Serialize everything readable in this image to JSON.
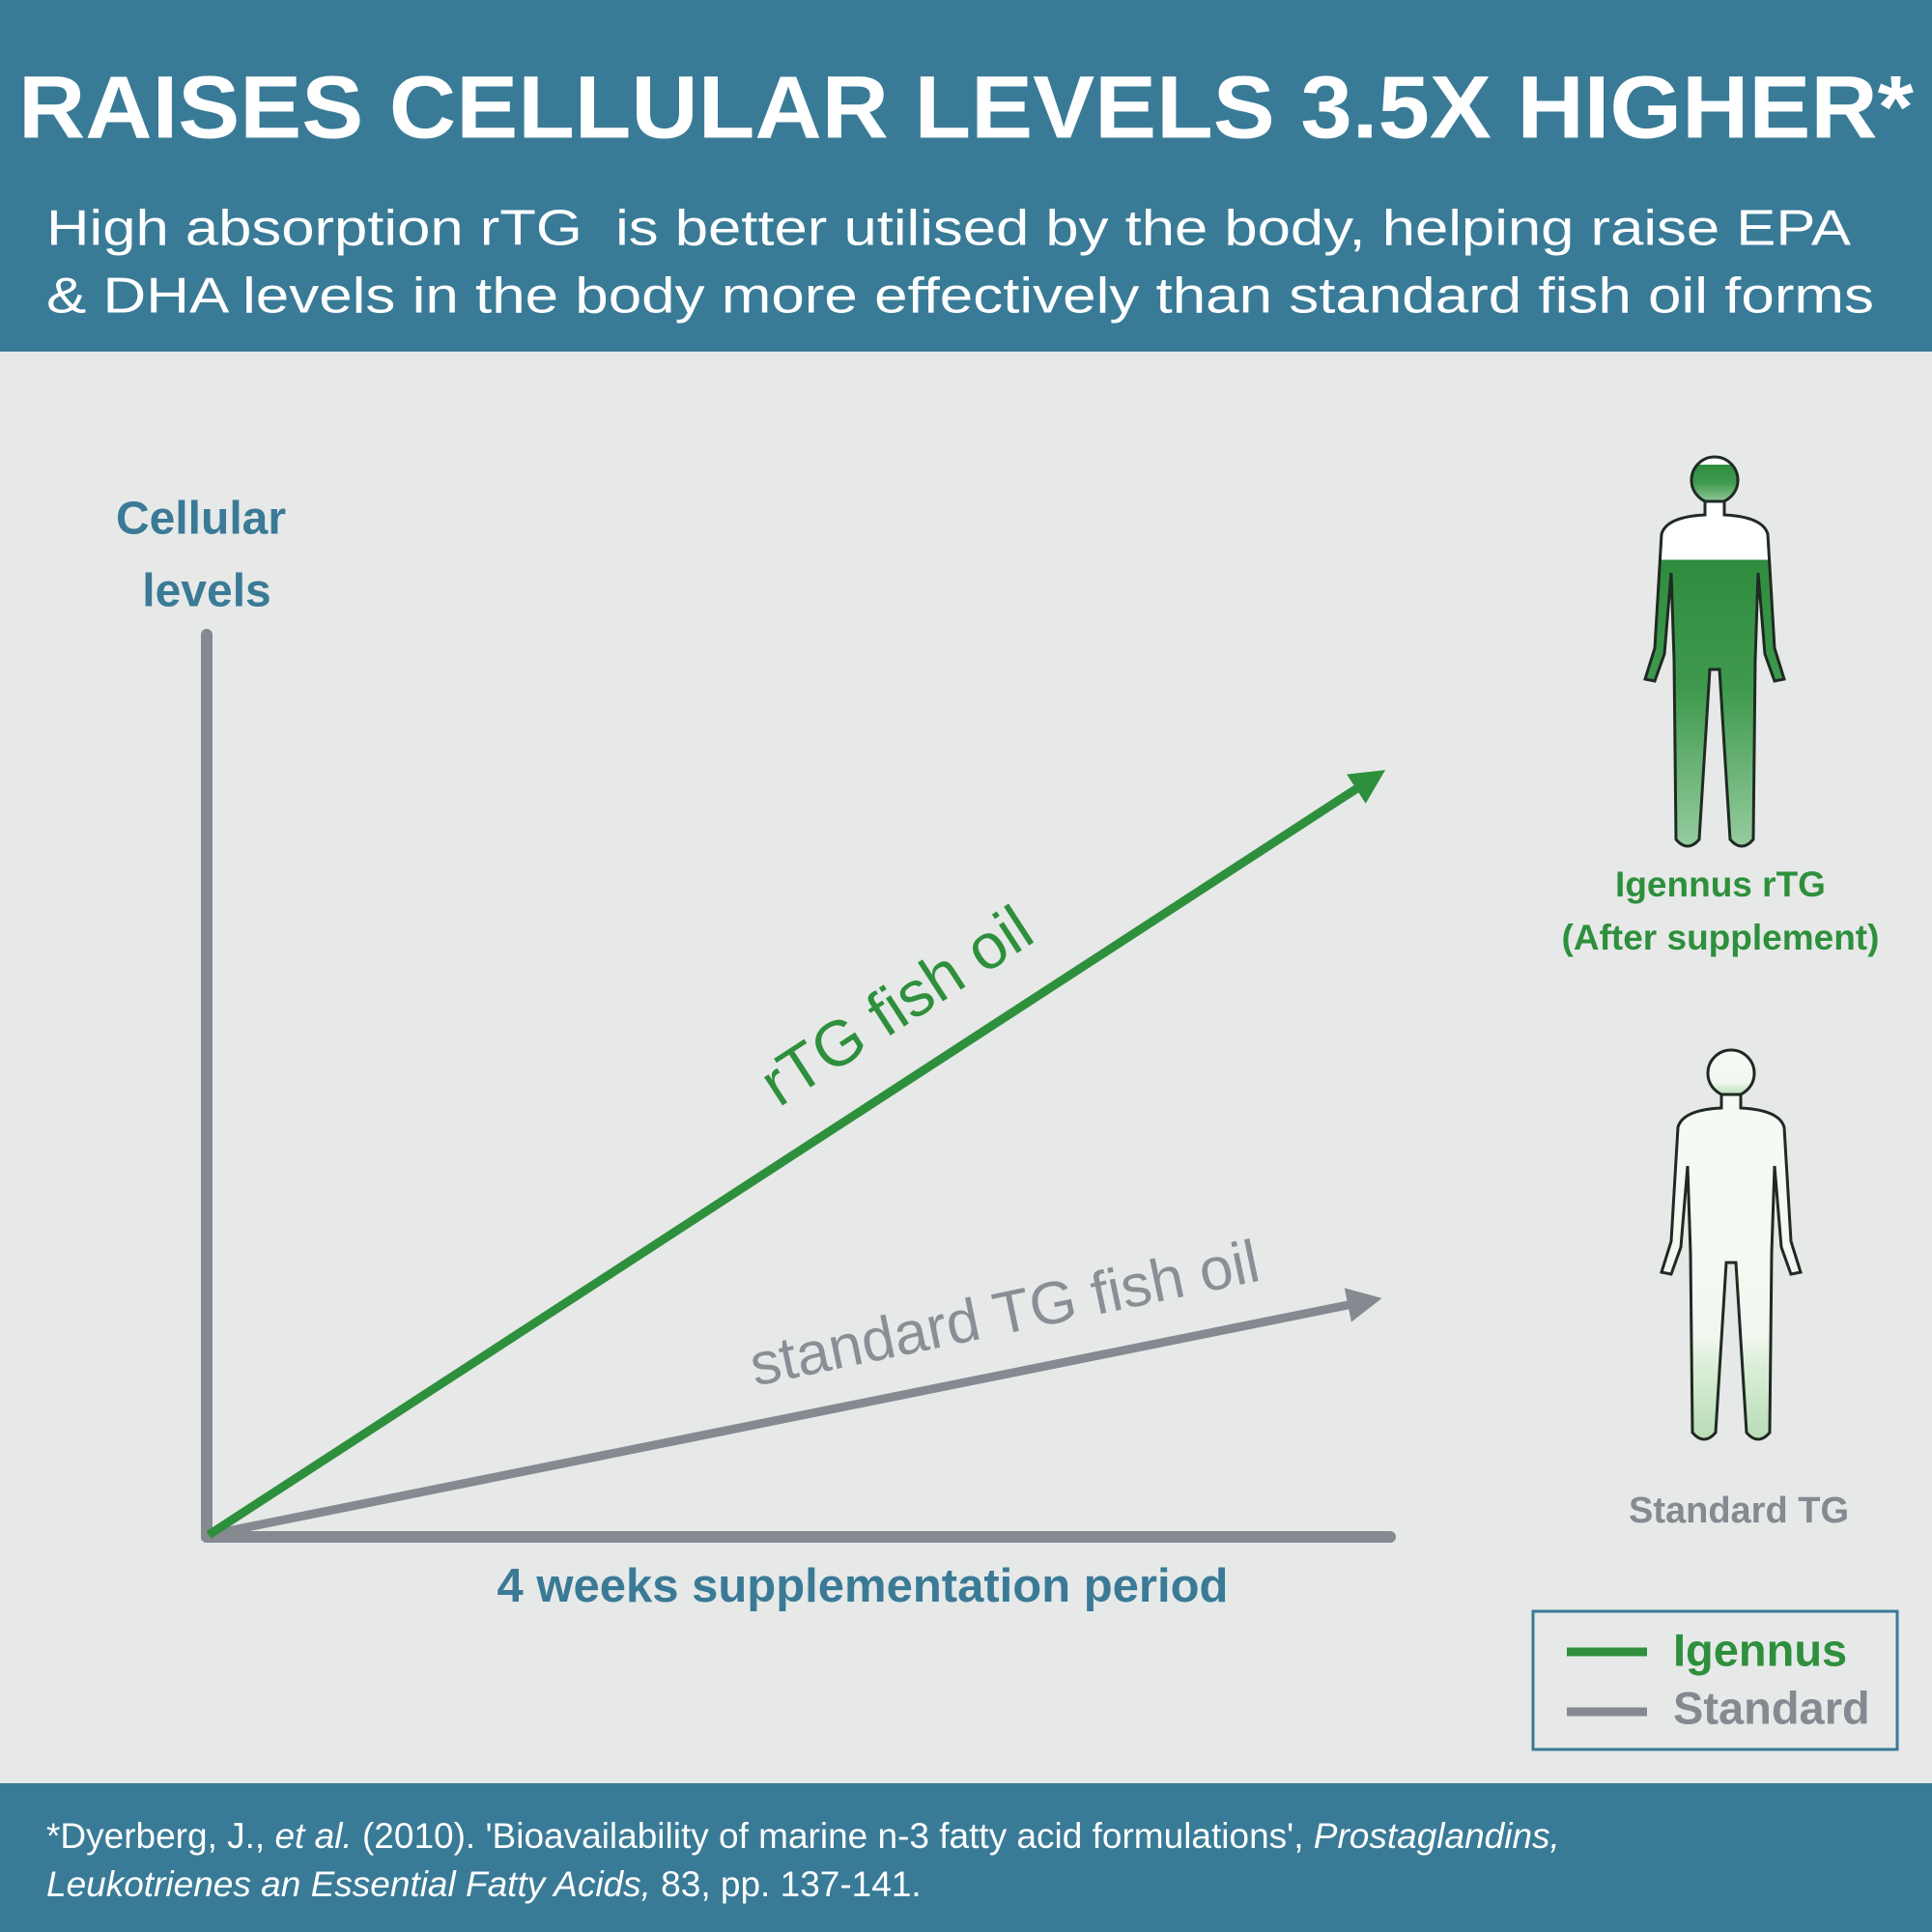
{
  "header": {
    "title": "RAISES CELLULAR LEVELS 3.5X HIGHER*",
    "subtitle_lines": [
      "High absorption rTG  is better utilised by the body, helping raise EPA",
      "& DHA levels in the body more effectively than standard fish oil forms"
    ]
  },
  "diagram": {
    "y_axis_label_lines": [
      "Cellular",
      "levels"
    ],
    "x_axis_label": "4 weeks supplementation period",
    "lines": [
      {
        "label": "rTG fish oil"
      },
      {
        "label": "standard TG fish oil"
      }
    ],
    "figures": [
      {
        "label_lines": [
          "Igennus rTG",
          "(After supplement)"
        ]
      },
      {
        "label_lines": [
          "Standard TG"
        ]
      }
    ],
    "legend": [
      "Igennus",
      "Standard"
    ]
  },
  "footnote": {
    "lines": [
      [
        "*Dyerberg, J., ",
        "et al.",
        " (2010). 'Bioavailability of marine n-3 fatty acid formulations', ",
        "Prostaglandins,"
      ],
      [
        "Leukotrienes an Essential Fatty Acids,",
        " 83, pp. 137-141."
      ]
    ]
  }
}
